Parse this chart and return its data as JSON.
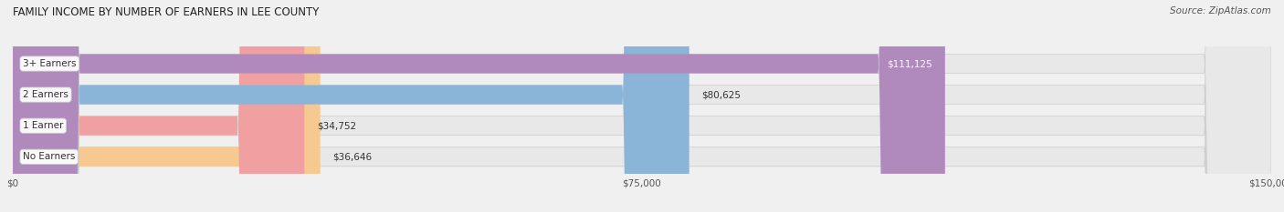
{
  "title": "FAMILY INCOME BY NUMBER OF EARNERS IN LEE COUNTY",
  "source": "Source: ZipAtlas.com",
  "categories": [
    "No Earners",
    "1 Earner",
    "2 Earners",
    "3+ Earners"
  ],
  "values": [
    36646,
    34752,
    80625,
    111125
  ],
  "bar_colors": [
    "#f5c990",
    "#f0a0a0",
    "#8ab4d8",
    "#b08abd"
  ],
  "label_colors": [
    "#333333",
    "#333333",
    "#333333",
    "#ffffff"
  ],
  "xlim": [
    0,
    150000
  ],
  "xticks": [
    0,
    75000,
    150000
  ],
  "xtick_labels": [
    "$0",
    "$75,000",
    "$150,000"
  ],
  "value_labels": [
    "$36,646",
    "$34,752",
    "$80,625",
    "$111,125"
  ],
  "background_color": "#f0f0f0",
  "bar_background": "#e8e8e8",
  "bar_height": 0.62,
  "fig_width": 14.06,
  "fig_height": 2.33
}
